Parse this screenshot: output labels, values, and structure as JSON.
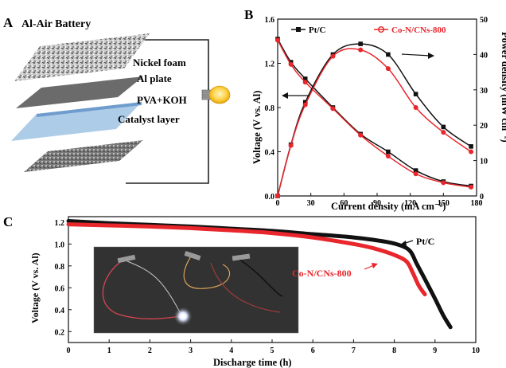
{
  "panels": {
    "a": {
      "letter": "A",
      "title": "Al-Air Battery",
      "layers": [
        "Nickel foam",
        "Al plate",
        "PVA+KOH",
        "Catalyst layer"
      ]
    },
    "b": {
      "letter": "B"
    },
    "c": {
      "letter": "C"
    }
  },
  "colors": {
    "pt": "#111111",
    "co": "#e8262c"
  },
  "chart_data": [
    {
      "type": "line",
      "panel": "B",
      "xlabel": "Current density (mA cm⁻²)",
      "ylabel": "Voltage (V vs. Al)",
      "y2label": "Power density (mW cm⁻²)",
      "xlim": [
        0,
        180
      ],
      "ylim": [
        0,
        1.6
      ],
      "y2lim": [
        0,
        50
      ],
      "xticks": [
        0,
        30,
        60,
        90,
        120,
        150,
        180
      ],
      "yticks": [
        0.0,
        0.4,
        0.8,
        1.2,
        1.6
      ],
      "y2ticks": [
        0,
        10,
        20,
        30,
        40,
        50
      ],
      "legend": [
        "Pt/C",
        "Co-N/CNs-800"
      ],
      "legend_position": "top",
      "series": [
        {
          "name": "Pt/C",
          "axis": "left",
          "color": "#111111",
          "x": [
            0,
            12,
            25,
            50,
            75,
            100,
            125,
            150,
            175
          ],
          "y": [
            1.42,
            1.21,
            1.06,
            0.8,
            0.56,
            0.4,
            0.23,
            0.13,
            0.09
          ]
        },
        {
          "name": "Co-N/CNs-800",
          "axis": "left",
          "color": "#e8262c",
          "x": [
            0,
            12,
            25,
            50,
            75,
            100,
            125,
            150,
            175
          ],
          "y": [
            1.41,
            1.19,
            1.03,
            0.79,
            0.55,
            0.36,
            0.2,
            0.12,
            0.08
          ]
        },
        {
          "name": "Pt/C",
          "axis": "right",
          "color": "#111111",
          "x": [
            0,
            12,
            25,
            50,
            75,
            100,
            125,
            150,
            175
          ],
          "y": [
            0,
            14.5,
            26.5,
            40.0,
            43.0,
            40.0,
            28.8,
            19.5,
            14.0
          ]
        },
        {
          "name": "Co-N/CNs-800",
          "axis": "right",
          "color": "#e8262c",
          "x": [
            0,
            12,
            25,
            50,
            75,
            100,
            125,
            150,
            175
          ],
          "y": [
            0,
            14.3,
            25.8,
            39.5,
            41.3,
            36.0,
            25.0,
            18.0,
            12.5
          ]
        }
      ]
    },
    {
      "type": "line",
      "panel": "C",
      "xlabel": "Discharge time (h)",
      "ylabel": "Voltage (V vs. Al)",
      "xlim": [
        0,
        10
      ],
      "ylim": [
        0.1,
        1.25
      ],
      "xticks": [
        0,
        1,
        2,
        3,
        4,
        5,
        6,
        7,
        8,
        9,
        10
      ],
      "yticks": [
        0.2,
        0.4,
        0.6,
        0.8,
        1.0,
        1.2
      ],
      "labels": [
        "Pt/C",
        "Co-N/CNs-800"
      ],
      "series": [
        {
          "name": "Pt/C",
          "color": "#111111",
          "x": [
            0,
            1,
            2,
            3,
            4,
            5,
            6,
            7,
            7.8,
            8.2,
            8.4,
            8.55,
            8.75,
            9.0,
            9.2,
            9.38
          ],
          "y": [
            1.21,
            1.19,
            1.175,
            1.16,
            1.14,
            1.12,
            1.09,
            1.06,
            1.02,
            0.98,
            0.93,
            0.82,
            0.68,
            0.5,
            0.35,
            0.24
          ]
        },
        {
          "name": "Co-N/CNs-800",
          "color": "#e8262c",
          "x": [
            0,
            1,
            2,
            3,
            4,
            5,
            6,
            7,
            7.5,
            8.0,
            8.3,
            8.45,
            8.6,
            8.75
          ],
          "y": [
            1.18,
            1.17,
            1.16,
            1.145,
            1.125,
            1.1,
            1.06,
            1.0,
            0.96,
            0.9,
            0.84,
            0.74,
            0.62,
            0.54
          ]
        }
      ]
    }
  ]
}
